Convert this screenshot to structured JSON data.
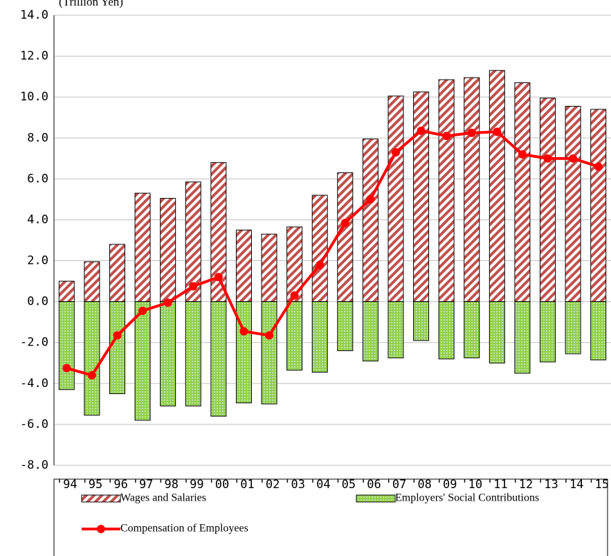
{
  "chart_data": {
    "type": "bar-line",
    "y_axis_label": "(Trillion Yen)",
    "categories": [
      "'94",
      "'95",
      "'96",
      "'97",
      "'98",
      "'99",
      "'00",
      "'01",
      "'02",
      "'03",
      "'04",
      "'05",
      "'06",
      "'07",
      "'08",
      "'09",
      "'10",
      "'11",
      "'12",
      "'13",
      "'14",
      "'15"
    ],
    "series": [
      {
        "name": "Wages and Salaries",
        "type": "bar",
        "pattern": "stripes",
        "color": "#c0504d",
        "values": [
          1.0,
          1.95,
          2.8,
          5.3,
          5.05,
          5.85,
          6.8,
          3.5,
          3.3,
          3.65,
          5.2,
          6.3,
          7.95,
          10.05,
          10.25,
          10.85,
          10.95,
          11.3,
          10.7,
          9.95,
          9.55,
          9.4
        ]
      },
      {
        "name": "Employers' Social Contributions",
        "type": "bar",
        "pattern": "dots",
        "color": "#92d050",
        "values": [
          -4.3,
          -5.55,
          -4.5,
          -5.8,
          -5.1,
          -5.1,
          -5.6,
          -4.95,
          -5.0,
          -3.35,
          -3.45,
          -2.4,
          -2.9,
          -2.75,
          -1.9,
          -2.8,
          -2.75,
          -3.0,
          -3.5,
          -2.95,
          -2.55,
          -2.85
        ]
      },
      {
        "name": "Compensation of Employees",
        "type": "line",
        "color": "#ff0000",
        "values": [
          -3.25,
          -3.6,
          -1.65,
          -0.45,
          -0.05,
          0.75,
          1.2,
          -1.45,
          -1.65,
          0.3,
          1.8,
          3.85,
          5.0,
          7.3,
          8.35,
          8.1,
          8.25,
          8.3,
          7.2,
          7.0,
          7.0,
          6.6
        ]
      }
    ],
    "ylim": [
      -8,
      14
    ],
    "yticks": [
      {
        "value": -8,
        "label": "-8.0"
      },
      {
        "value": -6,
        "label": "-6.0"
      },
      {
        "value": -4,
        "label": "-4.0"
      },
      {
        "value": -2,
        "label": "-2.0"
      },
      {
        "value": 0,
        "label": "0.0"
      },
      {
        "value": 2,
        "label": "2.0"
      },
      {
        "value": 4,
        "label": "4.0"
      },
      {
        "value": 6,
        "label": "6.0"
      },
      {
        "value": 8,
        "label": "8.0"
      },
      {
        "value": 10,
        "label": "10.0"
      },
      {
        "value": 12,
        "label": "12.0"
      },
      {
        "value": 14,
        "label": "14.0"
      }
    ],
    "grid": true
  }
}
